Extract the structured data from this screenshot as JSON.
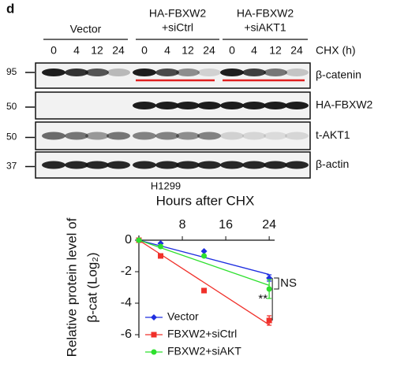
{
  "figure": {
    "panel": "d",
    "groups": [
      {
        "label": [
          "Vector"
        ],
        "times": [
          "0",
          "4",
          "12",
          "24"
        ]
      },
      {
        "label": [
          "HA-FBXW2",
          "+siCtrl"
        ],
        "times": [
          "0",
          "4",
          "12",
          "24"
        ]
      },
      {
        "label": [
          "HA-FBXW2",
          "+siAKT1"
        ],
        "times": [
          "0",
          "4",
          "12",
          "24"
        ]
      }
    ],
    "time_unit": "CHX (h)",
    "blots": [
      {
        "marker": "95",
        "label": "β-catenin"
      },
      {
        "marker": "50",
        "label": "HA-FBXW2"
      },
      {
        "marker": "50",
        "label": "t-AKT1"
      },
      {
        "marker": "37",
        "label": "β-actin"
      }
    ],
    "cell_line": "H1299"
  },
  "chart_data": {
    "type": "scatter",
    "title": "Hours after CHX",
    "ylabel": [
      "Relative protein level of",
      "β-cat (Log₂)"
    ],
    "x": [
      0,
      4,
      12,
      24
    ],
    "xlim": [
      0,
      25
    ],
    "xticks": [
      8,
      16,
      24
    ],
    "ylim": [
      -6.2,
      0.3
    ],
    "yticks": [
      0,
      -2,
      -4,
      -6
    ],
    "series": [
      {
        "name": "Vector",
        "color": "#1f2fe0",
        "marker": "diamond",
        "values": [
          0,
          -0.2,
          -0.7,
          -2.4
        ],
        "errors": [
          0,
          0,
          0,
          0.2
        ]
      },
      {
        "name": "FBXW2+siCtrl",
        "color": "#f0302a",
        "marker": "square",
        "values": [
          0,
          -1.0,
          -3.2,
          -5.1
        ],
        "errors": [
          0,
          0,
          0,
          0.3
        ]
      },
      {
        "name": "FBXW2+siAKT",
        "color": "#2ee02e",
        "marker": "circle",
        "values": [
          0,
          -0.4,
          -1.0,
          -3.1
        ],
        "errors": [
          0,
          0,
          0,
          0.6
        ]
      }
    ],
    "annotations": [
      "NS",
      "**"
    ]
  }
}
